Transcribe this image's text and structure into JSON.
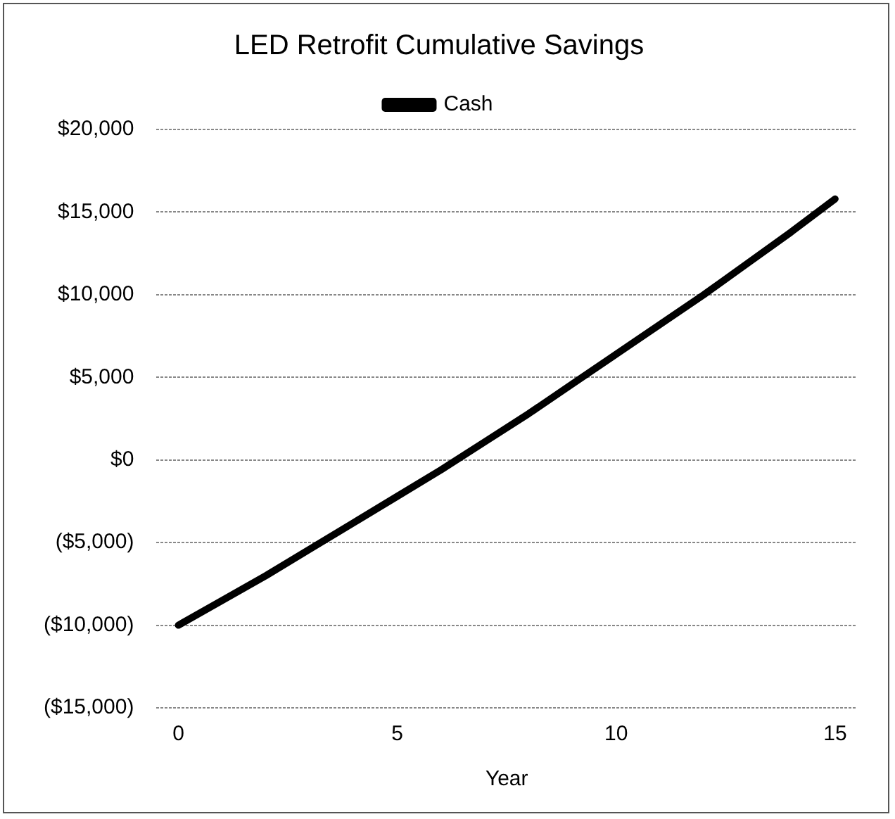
{
  "chart_data": {
    "type": "line",
    "title": "LED Retrofit Cumulative Savings",
    "xlabel": "Year",
    "x": [
      0,
      1,
      2,
      3,
      4,
      5,
      6,
      7,
      8,
      9,
      10,
      11,
      12,
      13,
      14,
      15
    ],
    "series": [
      {
        "name": "Cash",
        "color": "#000000",
        "values": [
          -10000,
          -8500,
          -7000,
          -5400,
          -3800,
          -2200,
          -600,
          1100,
          2800,
          4600,
          6400,
          8200,
          10000,
          11900,
          13800,
          15800
        ]
      }
    ],
    "xlim": [
      -0.5,
      15.5
    ],
    "xticks": [
      0,
      5,
      10,
      15
    ],
    "ylim": [
      -15000,
      20000
    ],
    "yticks": [
      {
        "value": -15000,
        "label": "($15,000)"
      },
      {
        "value": -10000,
        "label": "($10,000)"
      },
      {
        "value": -5000,
        "label": "($5,000)"
      },
      {
        "value": 0,
        "label": "$0"
      },
      {
        "value": 5000,
        "label": "$5,000"
      },
      {
        "value": 10000,
        "label": "$10,000"
      },
      {
        "value": 15000,
        "label": "$15,000"
      },
      {
        "value": 20000,
        "label": "$20,000"
      }
    ],
    "grid": "y",
    "legend": "top",
    "marker": "none",
    "line_style": "solid"
  }
}
